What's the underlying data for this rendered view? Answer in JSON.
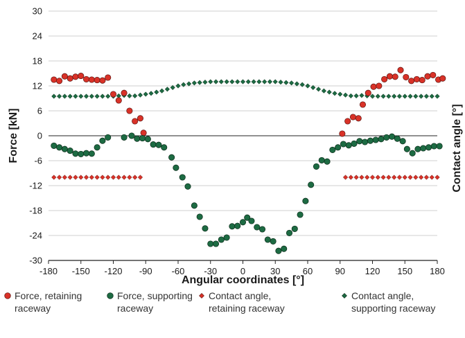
{
  "chart_data": {
    "type": "scatter",
    "xlabel": "Angular coordinates [°]",
    "ylabel": "Force [kN]",
    "y2label": "Contact angle [°]",
    "xlim": [
      -180,
      180
    ],
    "ylim": [
      -30,
      30
    ],
    "xticks": [
      "-180",
      "-150",
      "-120",
      "-90",
      "-60",
      "-30",
      "0",
      "30",
      "60",
      "90",
      "120",
      "150",
      "180"
    ],
    "yticks": [
      "30",
      "24",
      "18",
      "12",
      "6",
      "0",
      "-6",
      "-12",
      "-18",
      "-24",
      "-30"
    ],
    "grid": "horizontal",
    "legend_position": "bottom",
    "series": [
      {
        "name": "Force, retaining raceway",
        "legend_label": "Force, retaining\nraceway",
        "marker": "circle",
        "color": "#d93228",
        "points": [
          [
            -175,
            13.5
          ],
          [
            -170,
            13.2
          ],
          [
            -165,
            14.3
          ],
          [
            -160,
            13.8
          ],
          [
            -155,
            14.2
          ],
          [
            -150,
            14.4
          ],
          [
            -145,
            13.6
          ],
          [
            -140,
            13.5
          ],
          [
            -135,
            13.4
          ],
          [
            -130,
            13.3
          ],
          [
            -125,
            14.0
          ],
          [
            -120,
            10.0
          ],
          [
            -115,
            8.5
          ],
          [
            -110,
            10.3
          ],
          [
            -105,
            6.0
          ],
          [
            -100,
            3.5
          ],
          [
            -95,
            4.2
          ],
          [
            -92,
            0.7
          ],
          [
            92,
            0.5
          ],
          [
            97,
            3.5
          ],
          [
            102,
            4.5
          ],
          [
            107,
            4.2
          ],
          [
            111,
            7.5
          ],
          [
            116,
            10.3
          ],
          [
            121,
            11.8
          ],
          [
            126,
            12.0
          ],
          [
            131,
            13.6
          ],
          [
            136,
            14.3
          ],
          [
            141,
            14.2
          ],
          [
            146,
            15.8
          ],
          [
            151,
            14.1
          ],
          [
            156,
            13.2
          ],
          [
            161,
            13.6
          ],
          [
            166,
            13.4
          ],
          [
            171,
            14.3
          ],
          [
            176,
            14.6
          ],
          [
            181,
            13.5
          ],
          [
            185,
            13.8
          ]
        ]
      },
      {
        "name": "Force, supporting raceway",
        "legend_label": "Force, supporting\nraceway",
        "marker": "circle",
        "color": "#1d6b43",
        "points": [
          [
            -175,
            -2.4
          ],
          [
            -170,
            -2.8
          ],
          [
            -165,
            -3.2
          ],
          [
            -160,
            -3.6
          ],
          [
            -155,
            -4.3
          ],
          [
            -150,
            -4.4
          ],
          [
            -145,
            -4.2
          ],
          [
            -140,
            -4.3
          ],
          [
            -135,
            -2.8
          ],
          [
            -130,
            -1.2
          ],
          [
            -125,
            -0.4
          ],
          [
            -110,
            -0.4
          ],
          [
            -103,
            0.0
          ],
          [
            -98,
            -0.7
          ],
          [
            -93,
            -0.6
          ],
          [
            -88,
            -0.8
          ],
          [
            -83,
            -2.1
          ],
          [
            -78,
            -2.2
          ],
          [
            -73,
            -2.8
          ],
          [
            -66,
            -5.2
          ],
          [
            -62,
            -7.7
          ],
          [
            -56,
            -10.0
          ],
          [
            -51,
            -12.2
          ],
          [
            -45,
            -16.8
          ],
          [
            -40,
            -19.5
          ],
          [
            -35,
            -22.3
          ],
          [
            -30,
            -26.0
          ],
          [
            -25,
            -26.0
          ],
          [
            -20,
            -25.0
          ],
          [
            -15,
            -24.5
          ],
          [
            -10,
            -21.8
          ],
          [
            -5,
            -21.7
          ],
          [
            0,
            -20.8
          ],
          [
            4,
            -19.7
          ],
          [
            8,
            -20.5
          ],
          [
            13,
            -22.0
          ],
          [
            18,
            -22.5
          ],
          [
            23,
            -25.0
          ],
          [
            28,
            -25.4
          ],
          [
            33,
            -27.7
          ],
          [
            38,
            -27.2
          ],
          [
            43,
            -23.4
          ],
          [
            48,
            -22.4
          ],
          [
            53,
            -19.0
          ],
          [
            58,
            -15.7
          ],
          [
            63,
            -11.8
          ],
          [
            68,
            -7.4
          ],
          [
            73,
            -5.9
          ],
          [
            78,
            -6.2
          ],
          [
            83,
            -3.4
          ],
          [
            88,
            -2.8
          ],
          [
            93,
            -2.0
          ],
          [
            98,
            -2.3
          ],
          [
            103,
            -1.9
          ],
          [
            108,
            -1.3
          ],
          [
            113,
            -1.5
          ],
          [
            118,
            -1.2
          ],
          [
            123,
            -1.0
          ],
          [
            128,
            -0.8
          ],
          [
            133,
            -0.4
          ],
          [
            138,
            -0.2
          ],
          [
            143,
            -0.7
          ],
          [
            148,
            -1.3
          ],
          [
            152,
            -3.2
          ],
          [
            157,
            -4.2
          ],
          [
            162,
            -3.2
          ],
          [
            167,
            -3.0
          ],
          [
            172,
            -2.8
          ],
          [
            177,
            -2.5
          ],
          [
            182,
            -2.5
          ]
        ]
      },
      {
        "name": "Contact angle, retaining raceway",
        "legend_label": "Contact angle,\nretaining raceway",
        "marker": "diamond",
        "color": "#d93228",
        "x": [
          -175,
          -170,
          -165,
          -160,
          -155,
          -150,
          -145,
          -140,
          -135,
          -130,
          -125,
          -120,
          -115,
          -110,
          -105,
          -100,
          -95,
          95,
          100,
          105,
          110,
          115,
          120,
          125,
          130,
          135,
          140,
          145,
          150,
          155,
          160,
          165,
          170,
          175,
          180
        ],
        "y": [
          -10,
          -10,
          -10,
          -10,
          -10,
          -10,
          -10,
          -10,
          -10,
          -10,
          -10,
          -10,
          -10,
          -10,
          -10,
          -10,
          -10,
          -10,
          -10,
          -10,
          -10,
          -10,
          -10,
          -10,
          -10,
          -10,
          -10,
          -10,
          -10,
          -10,
          -10,
          -10,
          -10,
          -10,
          -10
        ]
      },
      {
        "name": "Contact angle, supporting raceway",
        "legend_label": "Contact angle,\nsupporting raceway",
        "marker": "diamond",
        "color": "#1d6b43",
        "points": [
          [
            -175,
            9.5
          ],
          [
            -170,
            9.5
          ],
          [
            -165,
            9.5
          ],
          [
            -160,
            9.5
          ],
          [
            -155,
            9.5
          ],
          [
            -150,
            9.5
          ],
          [
            -145,
            9.5
          ],
          [
            -140,
            9.5
          ],
          [
            -135,
            9.5
          ],
          [
            -130,
            9.5
          ],
          [
            -125,
            9.5
          ],
          [
            -120,
            9.5
          ],
          [
            -115,
            9.6
          ],
          [
            -110,
            9.7
          ],
          [
            -105,
            9.6
          ],
          [
            -100,
            9.6
          ],
          [
            -95,
            9.8
          ],
          [
            -90,
            10.0
          ],
          [
            -85,
            10.2
          ],
          [
            -80,
            10.5
          ],
          [
            -75,
            10.8
          ],
          [
            -70,
            11.2
          ],
          [
            -65,
            11.6
          ],
          [
            -60,
            12.0
          ],
          [
            -55,
            12.3
          ],
          [
            -50,
            12.5
          ],
          [
            -45,
            12.7
          ],
          [
            -40,
            12.8
          ],
          [
            -35,
            12.9
          ],
          [
            -30,
            13.0
          ],
          [
            -25,
            13.0
          ],
          [
            -20,
            13.0
          ],
          [
            -15,
            13.0
          ],
          [
            -10,
            13.0
          ],
          [
            -5,
            13.0
          ],
          [
            0,
            13.0
          ],
          [
            5,
            13.0
          ],
          [
            10,
            13.0
          ],
          [
            15,
            13.0
          ],
          [
            20,
            13.0
          ],
          [
            25,
            13.0
          ],
          [
            30,
            13.0
          ],
          [
            35,
            12.9
          ],
          [
            40,
            12.8
          ],
          [
            45,
            12.7
          ],
          [
            50,
            12.5
          ],
          [
            55,
            12.3
          ],
          [
            60,
            12.0
          ],
          [
            65,
            11.6
          ],
          [
            70,
            11.2
          ],
          [
            75,
            10.8
          ],
          [
            80,
            10.5
          ],
          [
            85,
            10.2
          ],
          [
            90,
            10.0
          ],
          [
            95,
            9.8
          ],
          [
            100,
            9.6
          ],
          [
            105,
            9.6
          ],
          [
            110,
            9.7
          ],
          [
            115,
            9.6
          ],
          [
            120,
            9.5
          ],
          [
            125,
            9.5
          ],
          [
            130,
            9.5
          ],
          [
            135,
            9.5
          ],
          [
            140,
            9.5
          ],
          [
            145,
            9.5
          ],
          [
            150,
            9.5
          ],
          [
            155,
            9.5
          ],
          [
            160,
            9.5
          ],
          [
            165,
            9.5
          ],
          [
            170,
            9.5
          ],
          [
            175,
            9.5
          ],
          [
            180,
            9.5
          ]
        ]
      }
    ]
  }
}
